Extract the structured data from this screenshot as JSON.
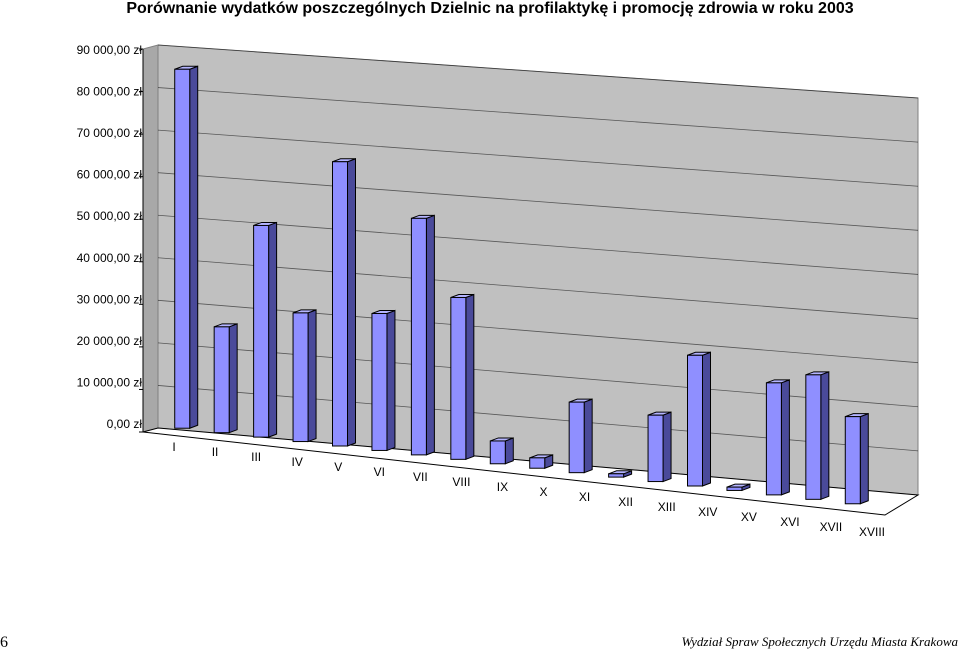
{
  "chart_data": {
    "type": "bar",
    "title": "Porównanie wydatków poszczególnych Dzielnic na profilaktykę i promocję zdrowia w roku 2003",
    "xlabel": "",
    "ylabel": "",
    "categories": [
      "I",
      "II",
      "III",
      "IV",
      "V",
      "VI",
      "VII",
      "VIII",
      "IX",
      "X",
      "XI",
      "XII",
      "XIII",
      "XIV",
      "XV",
      "XVI",
      "XVII",
      "XVIII"
    ],
    "values": [
      86500,
      25500,
      51000,
      31000,
      68500,
      33000,
      57000,
      39000,
      5500,
      2500,
      17000,
      800,
      16000,
      31500,
      800,
      27000,
      30000,
      21000
    ],
    "ylim": [
      0,
      90000
    ],
    "yticks": [
      "0,00 zł",
      "10 000,00 zł",
      "20 000,00 zł",
      "30 000,00 zł",
      "40 000,00 zł",
      "50 000,00 zł",
      "60 000,00 zł",
      "70 000,00 zł",
      "80 000,00 zł",
      "90 000,00 zł"
    ],
    "grid": true,
    "legend": "none",
    "style": "3d-perspective",
    "colors": {
      "bar_front": "#8f8fff",
      "bar_top": "#b4b4ff",
      "bar_side": "#4a4a9a",
      "wall": "#c0c0c0",
      "floor": "#ffffff",
      "gridline": "#000000"
    }
  },
  "footer": {
    "page_number": "6",
    "text": "Wydział Spraw Społecznych Urzędu Miasta Krakowa"
  }
}
